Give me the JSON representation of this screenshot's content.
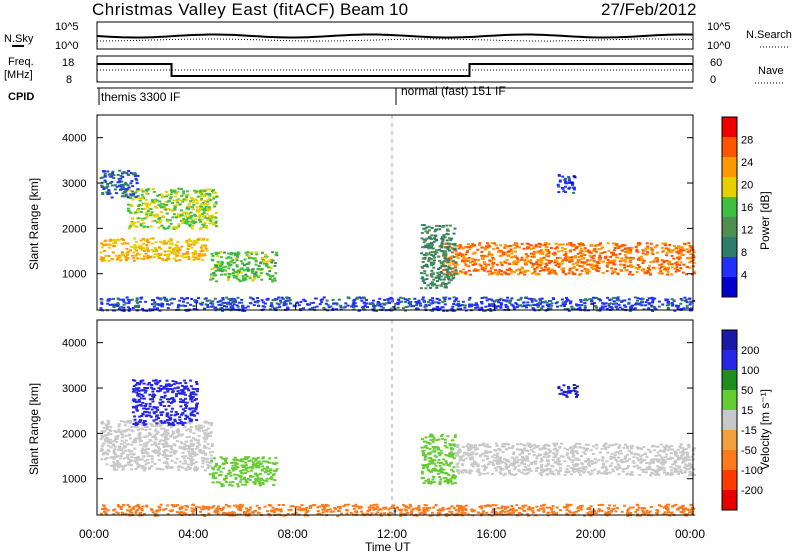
{
  "header": {
    "title": "Christmas Valley East (fitACF)",
    "beam": "Beam 10",
    "date": "27/Feb/2012"
  },
  "panel_labels": {
    "nsky": "N.Sky",
    "nsearch": "N.Search",
    "freq_line1": "Freq.",
    "freq_line2": "[MHz]",
    "nave": "Nave",
    "cpid": "CPID"
  },
  "nsky_axis": {
    "ticks": [
      "10^5",
      "10^0"
    ]
  },
  "nsearch_axis": {
    "ticks": [
      "10^5",
      "10^0"
    ]
  },
  "freq_axis": {
    "ticks": [
      "18",
      "8"
    ]
  },
  "nave_axis": {
    "ticks": [
      "60",
      "0"
    ]
  },
  "cpid_modes": [
    {
      "label": "themis 3300 IF"
    },
    {
      "label": "normal (fast) 151 IF"
    }
  ],
  "x_axis": {
    "label": "Time UT",
    "ticks": [
      "00:00",
      "04:00",
      "08:00",
      "12:00",
      "16:00",
      "20:00",
      "00:00"
    ]
  },
  "y_axis": {
    "label": "Slant Range [km]",
    "ticks": [
      "1000",
      "2000",
      "3000",
      "4000"
    ]
  },
  "power_colorbar": {
    "label": "Power [dB]",
    "ticks": [
      "4",
      "8",
      "12",
      "16",
      "20",
      "24",
      "28"
    ],
    "colors": [
      "#0000cc",
      "#2030ff",
      "#2e7d6b",
      "#4f8f52",
      "#3fbf3f",
      "#e6d100",
      "#ff9900",
      "#ff5500",
      "#ee0000"
    ]
  },
  "velocity_colorbar": {
    "label": "Velocity [m s⁻¹]",
    "ticks": [
      "200",
      "100",
      "50",
      "15",
      "-15",
      "-50",
      "-100",
      "-200"
    ],
    "colors": [
      "#1a1aa8",
      "#2626e6",
      "#1e8f1e",
      "#66cc33",
      "#c8c8c8",
      "#f0a040",
      "#ff7a1a",
      "#ff3b00",
      "#e60000"
    ]
  },
  "chart_data": {
    "type": "heatmap",
    "title": "Christmas Valley East (fitACF)",
    "xlabel": "Time UT",
    "ylabel": "Slant Range [km]",
    "xlim": [
      0,
      24
    ],
    "ylim": [
      200,
      4500
    ],
    "mode_change_hour": 12.05,
    "power_blobs": [
      {
        "t0": 0.1,
        "t1": 4.4,
        "r0": 1300,
        "r1": 1800,
        "value": 22
      },
      {
        "t0": 1.2,
        "t1": 4.8,
        "r0": 2000,
        "r1": 2900,
        "value": 18
      },
      {
        "t0": 0.1,
        "t1": 1.6,
        "r0": 2700,
        "r1": 3300,
        "value": 6
      },
      {
        "t0": 4.5,
        "t1": 7.2,
        "r0": 850,
        "r1": 1500,
        "value": 16
      },
      {
        "t0": 13.9,
        "t1": 24,
        "r0": 1000,
        "r1": 1700,
        "value": 26
      },
      {
        "t0": 13.0,
        "t1": 14.4,
        "r0": 700,
        "r1": 2100,
        "value": 10
      },
      {
        "t0": 0.1,
        "t1": 24,
        "r0": 200,
        "r1": 500,
        "value": 5
      },
      {
        "t0": 18.5,
        "t1": 19.2,
        "r0": 2800,
        "r1": 3200,
        "value": 4
      }
    ],
    "velocity_blobs": [
      {
        "t0": 0.1,
        "t1": 4.6,
        "r0": 1200,
        "r1": 2300,
        "value": 0
      },
      {
        "t0": 1.4,
        "t1": 4.0,
        "r0": 2200,
        "r1": 3200,
        "value": 180
      },
      {
        "t0": 4.5,
        "t1": 7.2,
        "r0": 850,
        "r1": 1500,
        "value": 40
      },
      {
        "t0": 13.0,
        "t1": 14.4,
        "r0": 900,
        "r1": 2000,
        "value": 40
      },
      {
        "t0": 14.4,
        "t1": 24,
        "r0": 1100,
        "r1": 1800,
        "value": 0
      },
      {
        "t0": 0.1,
        "t1": 24,
        "r0": 200,
        "r1": 450,
        "value": -60
      },
      {
        "t0": 18.5,
        "t1": 19.3,
        "r0": 2800,
        "r1": 3100,
        "value": 200
      }
    ],
    "frequency_mhz": {
      "segments": [
        {
          "t0": 0,
          "t1": 3.0,
          "value": 16
        },
        {
          "t0": 3.0,
          "t1": 12.0,
          "value": 10
        },
        {
          "t0": 12.05,
          "t1": 15.0,
          "value": 10
        },
        {
          "t0": 15.0,
          "t1": 24,
          "value": 16
        }
      ]
    }
  }
}
